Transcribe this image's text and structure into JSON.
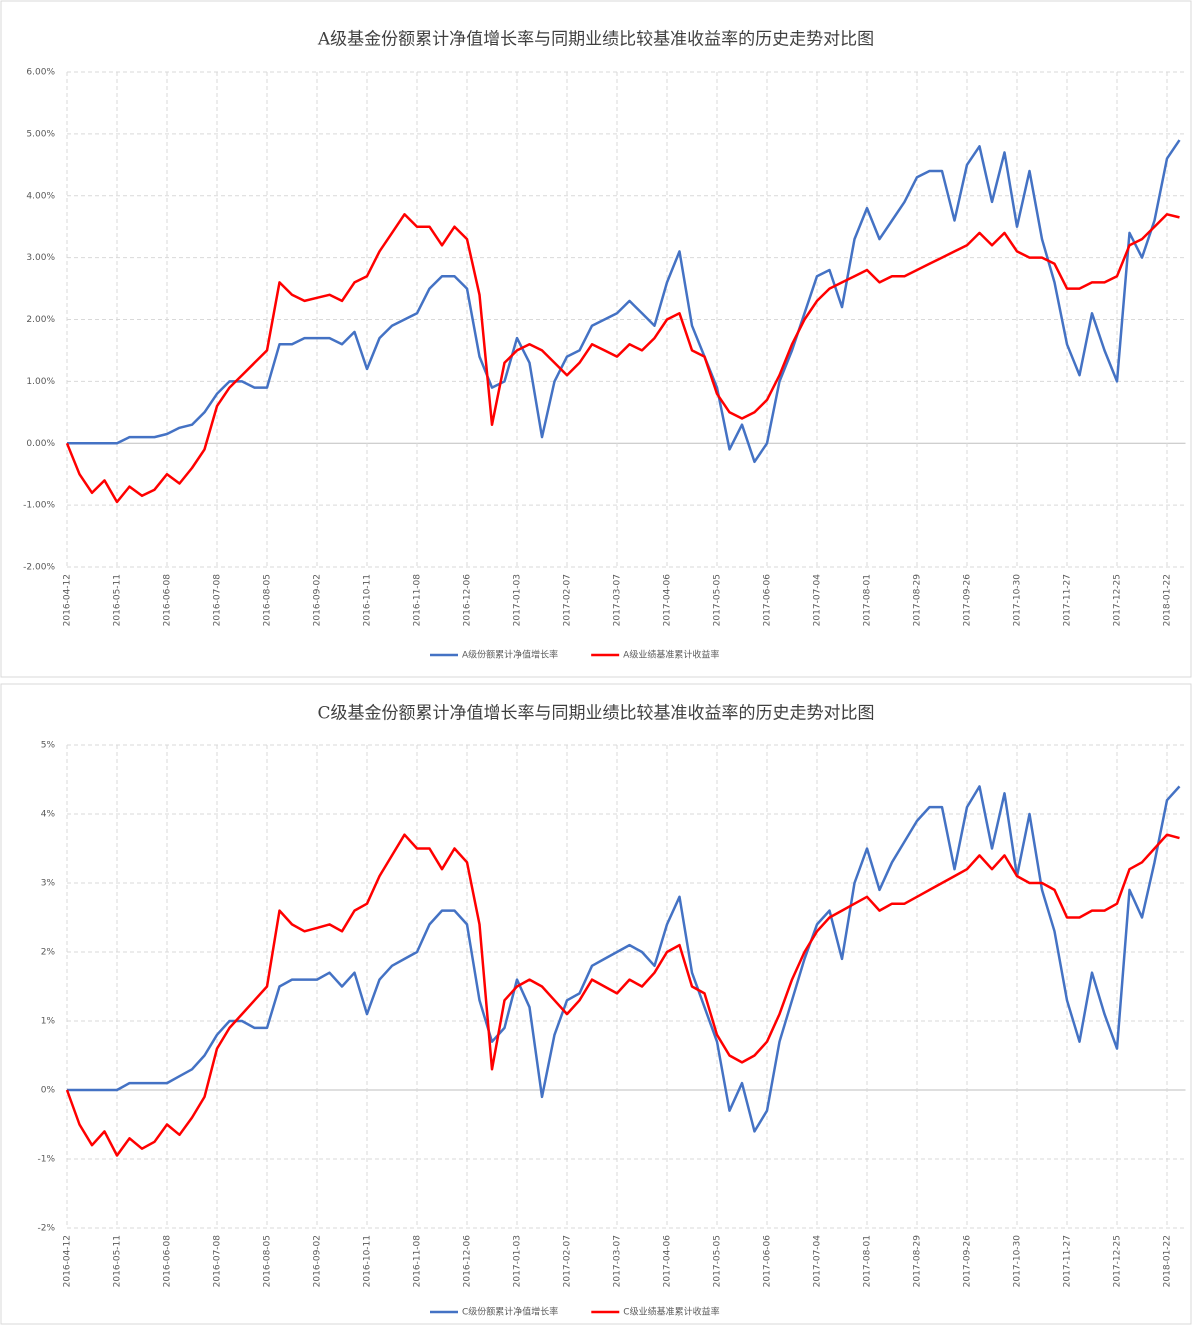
{
  "chart_data": [
    {
      "type": "line",
      "title": "A级基金份额累计净值增长率与同期业绩比较基准收益率的历史走势对比图",
      "categories": [
        "2016-04-12",
        null,
        null,
        null,
        "2016-05-11",
        null,
        null,
        null,
        "2016-06-08",
        null,
        null,
        null,
        "2016-07-08",
        null,
        null,
        null,
        "2016-08-05",
        null,
        null,
        null,
        "2016-09-02",
        null,
        null,
        null,
        "2016-10-11",
        null,
        null,
        null,
        "2016-11-08",
        null,
        null,
        null,
        "2016-12-06",
        null,
        null,
        null,
        "2017-01-03",
        null,
        null,
        null,
        "2017-02-07",
        null,
        null,
        null,
        "2017-03-07",
        null,
        null,
        null,
        "2017-04-06",
        null,
        null,
        null,
        "2017-05-05",
        null,
        null,
        null,
        "2017-06-06",
        null,
        null,
        null,
        "2017-07-04",
        null,
        null,
        null,
        "2017-08-01",
        null,
        null,
        null,
        "2017-08-29",
        null,
        null,
        null,
        "2017-09-26",
        null,
        null,
        null,
        "2017-10-30",
        null,
        null,
        null,
        "2017-11-27",
        null,
        null,
        null,
        "2017-12-25",
        null,
        null,
        null,
        "2018-01-22",
        null
      ],
      "series": [
        {
          "name": "A级份额累计净值增长率",
          "color": "#4472c4",
          "values": [
            0,
            0,
            0,
            0,
            0,
            0.1,
            0.1,
            0.1,
            0.15,
            0.25,
            0.3,
            0.5,
            0.8,
            1.0,
            1.0,
            0.9,
            0.9,
            1.6,
            1.6,
            1.7,
            1.7,
            1.7,
            1.6,
            1.8,
            1.2,
            1.7,
            1.9,
            2.0,
            2.1,
            2.5,
            2.7,
            2.7,
            2.5,
            1.4,
            0.9,
            1.0,
            1.7,
            1.3,
            0.1,
            1.0,
            1.4,
            1.5,
            1.9,
            2.0,
            2.1,
            2.3,
            2.1,
            1.9,
            2.6,
            3.1,
            1.9,
            1.4,
            0.9,
            -0.1,
            0.3,
            -0.3,
            0.0,
            1.0,
            1.5,
            2.1,
            2.7,
            2.8,
            2.2,
            3.3,
            3.8,
            3.3,
            3.6,
            3.9,
            4.3,
            4.4,
            4.4,
            3.6,
            4.5,
            4.8,
            3.9,
            4.7,
            3.5,
            4.4,
            3.3,
            2.6,
            1.6,
            1.1,
            2.1,
            1.5,
            1.0,
            3.4,
            3.0,
            3.6,
            4.6,
            4.9
          ]
        },
        {
          "name": "A级业绩基准累计收益率",
          "color": "#ff0000",
          "values": [
            0,
            -0.5,
            -0.8,
            -0.6,
            -0.95,
            -0.7,
            -0.85,
            -0.75,
            -0.5,
            -0.65,
            -0.4,
            -0.1,
            0.6,
            0.9,
            1.1,
            1.3,
            1.5,
            2.6,
            2.4,
            2.3,
            2.35,
            2.4,
            2.3,
            2.6,
            2.7,
            3.1,
            3.4,
            3.7,
            3.5,
            3.5,
            3.2,
            3.5,
            3.3,
            2.4,
            0.3,
            1.3,
            1.5,
            1.6,
            1.5,
            1.3,
            1.1,
            1.3,
            1.6,
            1.5,
            1.4,
            1.6,
            1.5,
            1.7,
            2.0,
            2.1,
            1.5,
            1.4,
            0.8,
            0.5,
            0.4,
            0.5,
            0.7,
            1.1,
            1.6,
            2.0,
            2.3,
            2.5,
            2.6,
            2.7,
            2.8,
            2.6,
            2.7,
            2.7,
            2.8,
            2.9,
            3.0,
            3.1,
            3.2,
            3.4,
            3.2,
            3.4,
            3.1,
            3.0,
            3.0,
            2.9,
            2.5,
            2.5,
            2.6,
            2.6,
            2.7,
            3.2,
            3.3,
            3.5,
            3.7,
            3.65
          ]
        }
      ],
      "ylim": [
        -2,
        6
      ],
      "yticks": [
        {
          "value": -2,
          "label": "-2.00%"
        },
        {
          "value": -1,
          "label": "-1.00%"
        },
        {
          "value": 0,
          "label": "0.00%"
        },
        {
          "value": 1,
          "label": "1.00%"
        },
        {
          "value": 2,
          "label": "2.00%"
        },
        {
          "value": 3,
          "label": "3.00%"
        },
        {
          "value": 4,
          "label": "4.00%"
        },
        {
          "value": 5,
          "label": "5.00%"
        },
        {
          "value": 6,
          "label": "6.00%"
        }
      ],
      "grid": true,
      "legend": "bottom"
    },
    {
      "type": "line",
      "title": "C级基金份额累计净值增长率与同期业绩比较基准收益率的历史走势对比图",
      "categories": [
        "2016-04-12",
        null,
        null,
        null,
        "2016-05-11",
        null,
        null,
        null,
        "2016-06-08",
        null,
        null,
        null,
        "2016-07-08",
        null,
        null,
        null,
        "2016-08-05",
        null,
        null,
        null,
        "2016-09-02",
        null,
        null,
        null,
        "2016-10-11",
        null,
        null,
        null,
        "2016-11-08",
        null,
        null,
        null,
        "2016-12-06",
        null,
        null,
        null,
        "2017-01-03",
        null,
        null,
        null,
        "2017-02-07",
        null,
        null,
        null,
        "2017-03-07",
        null,
        null,
        null,
        "2017-04-06",
        null,
        null,
        null,
        "2017-05-05",
        null,
        null,
        null,
        "2017-06-06",
        null,
        null,
        null,
        "2017-07-04",
        null,
        null,
        null,
        "2017-08-01",
        null,
        null,
        null,
        "2017-08-29",
        null,
        null,
        null,
        "2017-09-26",
        null,
        null,
        null,
        "2017-10-30",
        null,
        null,
        null,
        "2017-11-27",
        null,
        null,
        null,
        "2017-12-25",
        null,
        null,
        null,
        "2018-01-22",
        null
      ],
      "series": [
        {
          "name": "C级份额累计净值增长率",
          "color": "#4472c4",
          "values": [
            0,
            0,
            0,
            0,
            0,
            0.1,
            0.1,
            0.1,
            0.1,
            0.2,
            0.3,
            0.5,
            0.8,
            1.0,
            1.0,
            0.9,
            0.9,
            1.5,
            1.6,
            1.6,
            1.6,
            1.7,
            1.5,
            1.7,
            1.1,
            1.6,
            1.8,
            1.9,
            2.0,
            2.4,
            2.6,
            2.6,
            2.4,
            1.3,
            0.7,
            0.9,
            1.6,
            1.2,
            -0.1,
            0.8,
            1.3,
            1.4,
            1.8,
            1.9,
            2.0,
            2.1,
            2.0,
            1.8,
            2.4,
            2.8,
            1.7,
            1.2,
            0.7,
            -0.3,
            0.1,
            -0.6,
            -0.3,
            0.7,
            1.3,
            1.9,
            2.4,
            2.6,
            1.9,
            3.0,
            3.5,
            2.9,
            3.3,
            3.6,
            3.9,
            4.1,
            4.1,
            3.2,
            4.1,
            4.4,
            3.5,
            4.3,
            3.1,
            4.0,
            2.9,
            2.3,
            1.3,
            0.7,
            1.7,
            1.1,
            0.6,
            2.9,
            2.5,
            3.3,
            4.2,
            4.4
          ]
        },
        {
          "name": "C级业绩基准累计收益率",
          "color": "#ff0000",
          "values": [
            0,
            -0.5,
            -0.8,
            -0.6,
            -0.95,
            -0.7,
            -0.85,
            -0.75,
            -0.5,
            -0.65,
            -0.4,
            -0.1,
            0.6,
            0.9,
            1.1,
            1.3,
            1.5,
            2.6,
            2.4,
            2.3,
            2.35,
            2.4,
            2.3,
            2.6,
            2.7,
            3.1,
            3.4,
            3.7,
            3.5,
            3.5,
            3.2,
            3.5,
            3.3,
            2.4,
            0.3,
            1.3,
            1.5,
            1.6,
            1.5,
            1.3,
            1.1,
            1.3,
            1.6,
            1.5,
            1.4,
            1.6,
            1.5,
            1.7,
            2.0,
            2.1,
            1.5,
            1.4,
            0.8,
            0.5,
            0.4,
            0.5,
            0.7,
            1.1,
            1.6,
            2.0,
            2.3,
            2.5,
            2.6,
            2.7,
            2.8,
            2.6,
            2.7,
            2.7,
            2.8,
            2.9,
            3.0,
            3.1,
            3.2,
            3.4,
            3.2,
            3.4,
            3.1,
            3.0,
            3.0,
            2.9,
            2.5,
            2.5,
            2.6,
            2.6,
            2.7,
            3.2,
            3.3,
            3.5,
            3.7,
            3.65
          ]
        }
      ],
      "ylim": [
        -2,
        5
      ],
      "yticks": [
        {
          "value": -2,
          "label": "-2%"
        },
        {
          "value": -1,
          "label": "-1%"
        },
        {
          "value": 0,
          "label": "0%"
        },
        {
          "value": 1,
          "label": "1%"
        },
        {
          "value": 2,
          "label": "2%"
        },
        {
          "value": 3,
          "label": "3%"
        },
        {
          "value": 4,
          "label": "4%"
        },
        {
          "value": 5,
          "label": "5%"
        }
      ],
      "grid": true,
      "legend": "bottom"
    }
  ]
}
